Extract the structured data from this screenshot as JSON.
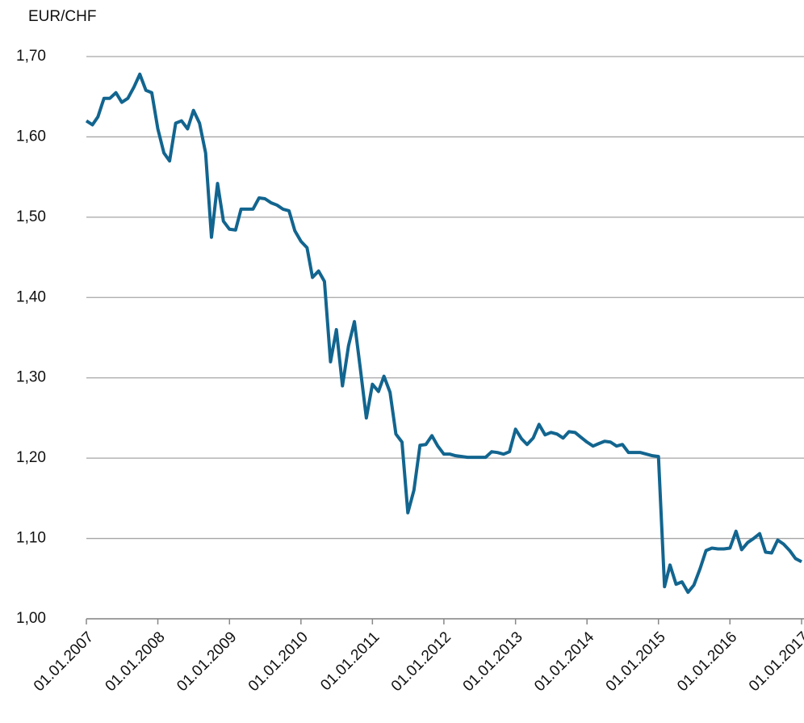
{
  "chart_data": {
    "type": "line",
    "y_label": "EUR/CHF",
    "color": "#12658f",
    "grid": true,
    "x": [
      "01.01.2007",
      "01.02.2007",
      "01.03.2007",
      "01.04.2007",
      "01.05.2007",
      "01.06.2007",
      "01.07.2007",
      "01.08.2007",
      "01.09.2007",
      "01.10.2007",
      "01.11.2007",
      "01.12.2007",
      "01.01.2008",
      "01.02.2008",
      "01.03.2008",
      "01.04.2008",
      "01.05.2008",
      "01.06.2008",
      "01.07.2008",
      "01.08.2008",
      "01.09.2008",
      "01.10.2008",
      "01.11.2008",
      "01.12.2008",
      "01.01.2009",
      "01.02.2009",
      "01.03.2009",
      "01.04.2009",
      "01.05.2009",
      "01.06.2009",
      "01.07.2009",
      "01.08.2009",
      "01.09.2009",
      "01.10.2009",
      "01.11.2009",
      "01.12.2009",
      "01.01.2010",
      "01.02.2010",
      "01.03.2010",
      "01.04.2010",
      "01.05.2010",
      "01.06.2010",
      "01.07.2010",
      "01.08.2010",
      "01.09.2010",
      "01.10.2010",
      "01.11.2010",
      "01.12.2010",
      "01.01.2011",
      "01.02.2011",
      "01.03.2011",
      "01.04.2011",
      "01.05.2011",
      "01.06.2011",
      "01.07.2011",
      "01.08.2011",
      "01.09.2011",
      "01.10.2011",
      "01.11.2011",
      "01.12.2011",
      "01.01.2012",
      "01.02.2012",
      "01.03.2012",
      "01.04.2012",
      "01.05.2012",
      "01.06.2012",
      "01.07.2012",
      "01.08.2012",
      "01.09.2012",
      "01.10.2012",
      "01.11.2012",
      "01.12.2012",
      "01.01.2013",
      "01.02.2013",
      "01.03.2013",
      "01.04.2013",
      "01.05.2013",
      "01.06.2013",
      "01.07.2013",
      "01.08.2013",
      "01.09.2013",
      "01.10.2013",
      "01.11.2013",
      "01.12.2013",
      "01.01.2014",
      "01.02.2014",
      "01.03.2014",
      "01.04.2014",
      "01.05.2014",
      "01.06.2014",
      "01.07.2014",
      "01.08.2014",
      "01.09.2014",
      "01.10.2014",
      "01.11.2014",
      "01.12.2014",
      "01.01.2015",
      "01.02.2015",
      "01.03.2015",
      "01.04.2015",
      "01.05.2015",
      "01.06.2015",
      "01.07.2015",
      "01.08.2015",
      "01.09.2015",
      "01.10.2015",
      "01.11.2015",
      "01.12.2015",
      "01.01.2016",
      "01.02.2016",
      "01.03.2016",
      "01.04.2016",
      "01.05.2016",
      "01.06.2016",
      "01.07.2016",
      "01.08.2016",
      "01.09.2016",
      "01.10.2016",
      "01.11.2016",
      "01.12.2016",
      "01.01.2017"
    ],
    "values": [
      1.62,
      1.615,
      1.625,
      1.648,
      1.648,
      1.655,
      1.643,
      1.648,
      1.662,
      1.678,
      1.658,
      1.655,
      1.61,
      1.58,
      1.57,
      1.617,
      1.62,
      1.61,
      1.633,
      1.617,
      1.58,
      1.475,
      1.542,
      1.495,
      1.485,
      1.484,
      1.51,
      1.51,
      1.51,
      1.524,
      1.523,
      1.518,
      1.515,
      1.51,
      1.508,
      1.483,
      1.47,
      1.462,
      1.425,
      1.433,
      1.42,
      1.32,
      1.36,
      1.29,
      1.34,
      1.37,
      1.31,
      1.25,
      1.292,
      1.283,
      1.302,
      1.282,
      1.23,
      1.22,
      1.132,
      1.16,
      1.216,
      1.217,
      1.228,
      1.215,
      1.205,
      1.205,
      1.203,
      1.202,
      1.201,
      1.201,
      1.201,
      1.201,
      1.208,
      1.207,
      1.205,
      1.208,
      1.236,
      1.224,
      1.217,
      1.225,
      1.242,
      1.229,
      1.232,
      1.23,
      1.225,
      1.233,
      1.232,
      1.226,
      1.22,
      1.215,
      1.218,
      1.221,
      1.22,
      1.215,
      1.217,
      1.207,
      1.207,
      1.207,
      1.205,
      1.203,
      1.202,
      1.04,
      1.067,
      1.043,
      1.046,
      1.033,
      1.042,
      1.062,
      1.085,
      1.088,
      1.087,
      1.087,
      1.088,
      1.109,
      1.086,
      1.095,
      1.1,
      1.106,
      1.083,
      1.082,
      1.098,
      1.093,
      1.085,
      1.075,
      1.071
    ],
    "xlim": [
      "01.01.2007",
      "01.01.2017"
    ],
    "xticks": [
      "01.01.2007",
      "01.01.2008",
      "01.01.2009",
      "01.01.2010",
      "01.01.2011",
      "01.01.2012",
      "01.01.2013",
      "01.01.2014",
      "01.01.2015",
      "01.01.2016",
      "01.01.2017"
    ],
    "ylim": [
      1.0,
      1.7
    ],
    "yticks": [
      {
        "value": 1.0,
        "label": "1,00"
      },
      {
        "value": 1.1,
        "label": "1,10"
      },
      {
        "value": 1.2,
        "label": "1,20"
      },
      {
        "value": 1.3,
        "label": "1,30"
      },
      {
        "value": 1.4,
        "label": "1,40"
      },
      {
        "value": 1.5,
        "label": "1,50"
      },
      {
        "value": 1.6,
        "label": "1,60"
      },
      {
        "value": 1.7,
        "label": "1,70"
      }
    ]
  }
}
